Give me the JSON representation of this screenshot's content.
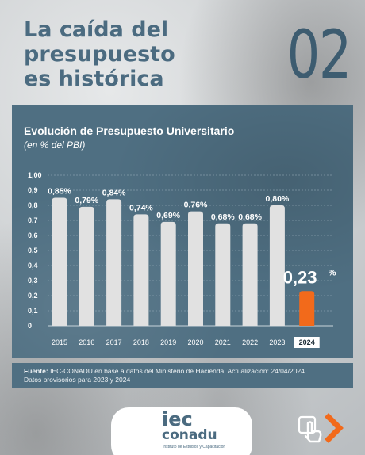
{
  "headline": [
    "La caída del",
    "presupuesto",
    "es histórica"
  ],
  "page_number": "02",
  "chart_data": {
    "type": "bar",
    "title": "Evolución de Presupuesto Universitario",
    "subtitle": "(en % del PBI)",
    "categories": [
      "2015",
      "2016",
      "2017",
      "2018",
      "2019",
      "2020",
      "2021",
      "2022",
      "2023",
      "2024"
    ],
    "values": [
      0.85,
      0.79,
      0.84,
      0.74,
      0.69,
      0.76,
      0.68,
      0.68,
      0.8,
      0.23
    ],
    "labels": [
      "0,85%",
      "0,79%",
      "0,84%",
      "0,74%",
      "0,69%",
      "0,76%",
      "0,68%",
      "0,68%",
      "0,80%",
      "0,23"
    ],
    "highlight_label_suffix": "%",
    "highlight_index": 9,
    "yticks": [
      "0",
      "0,1",
      "0,2",
      "0,3",
      "0,4",
      "0,5",
      "0,6",
      "0,7",
      "0,8",
      "0,9",
      "1,00"
    ],
    "ylim": [
      0,
      1
    ],
    "grid": true,
    "bar_color": "#e1e1e1",
    "highlight_color": "#f26a1b"
  },
  "source": {
    "label": "Fuente:",
    "text": " IEC-CONADU en base a datos del Ministerio de Hacienda. Actualización: 24/04/2024",
    "note": "Datos provisorios para 2023 y 2024"
  },
  "logo": {
    "main": "iec",
    "sub": "conadu",
    "tagline": "Instituto de Estudios y Capacitación"
  },
  "colors": {
    "panel": "#4f6f82",
    "accent": "#f26a1b",
    "headline": "#4b6b80"
  }
}
